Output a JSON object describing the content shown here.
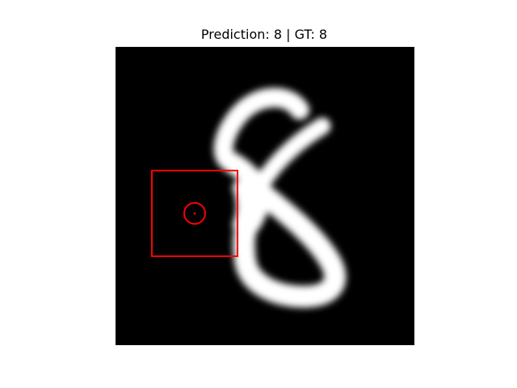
{
  "figure": {
    "title": "Prediction: 8 | GT: 8",
    "prediction": "8",
    "ground_truth": "8"
  },
  "image": {
    "content": "digit-8",
    "background_color": "#000000",
    "stroke_color": "#ffffff"
  },
  "overlay": {
    "box_color": "#ff0000",
    "marker_color": "#ff0000"
  }
}
